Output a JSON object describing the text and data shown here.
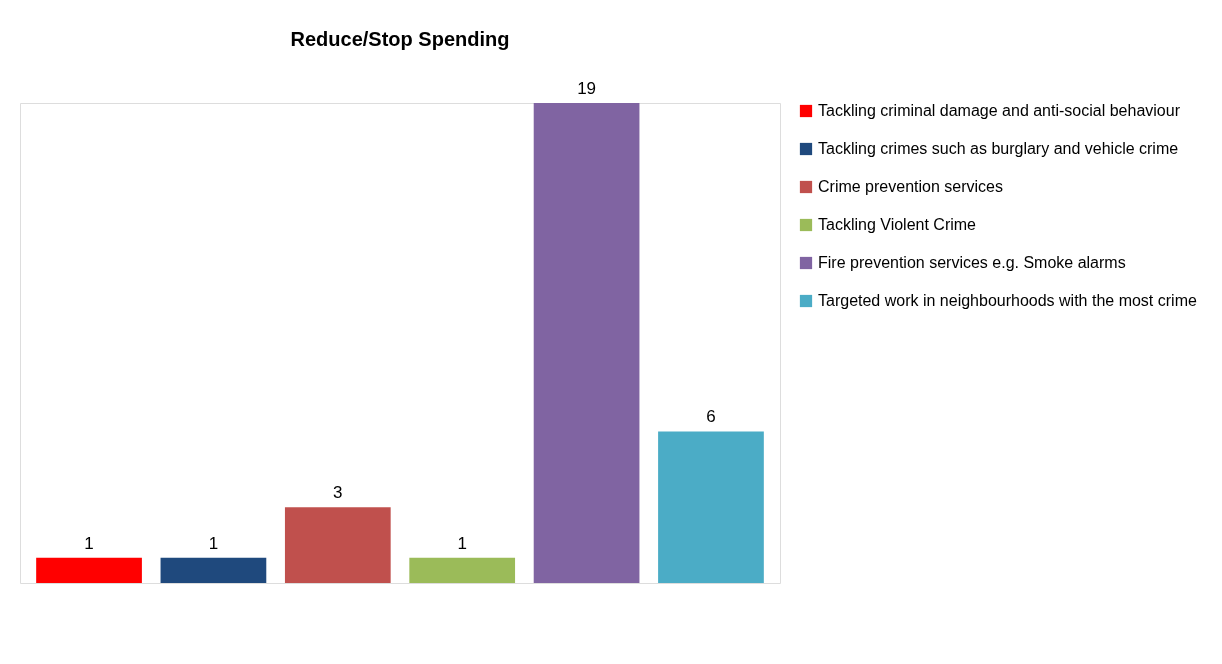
{
  "chart_data": {
    "type": "bar",
    "title": "Reduce/Stop Spending",
    "categories": [
      null
    ],
    "series": [
      {
        "name": "Tackling criminal damage and anti-social behaviour",
        "color": "#ff0000",
        "values": [
          1
        ]
      },
      {
        "name": "Tackling crimes such as burglary and vehicle crime",
        "color": "#1f497d",
        "values": [
          1
        ]
      },
      {
        "name": "Crime prevention services",
        "color": "#c0504d",
        "values": [
          3
        ]
      },
      {
        "name": "Tackling Violent Crime",
        "color": "#9bbb59",
        "values": [
          1
        ]
      },
      {
        "name": "Fire prevention services e.g. Smoke alarms",
        "color": "#8064a2",
        "values": [
          19
        ]
      },
      {
        "name": "Targeted work in neighbourhoods with the most crime",
        "color": "#4bacc6",
        "values": [
          6
        ]
      }
    ],
    "data_labels": true,
    "legend": "right",
    "grid": false
  }
}
